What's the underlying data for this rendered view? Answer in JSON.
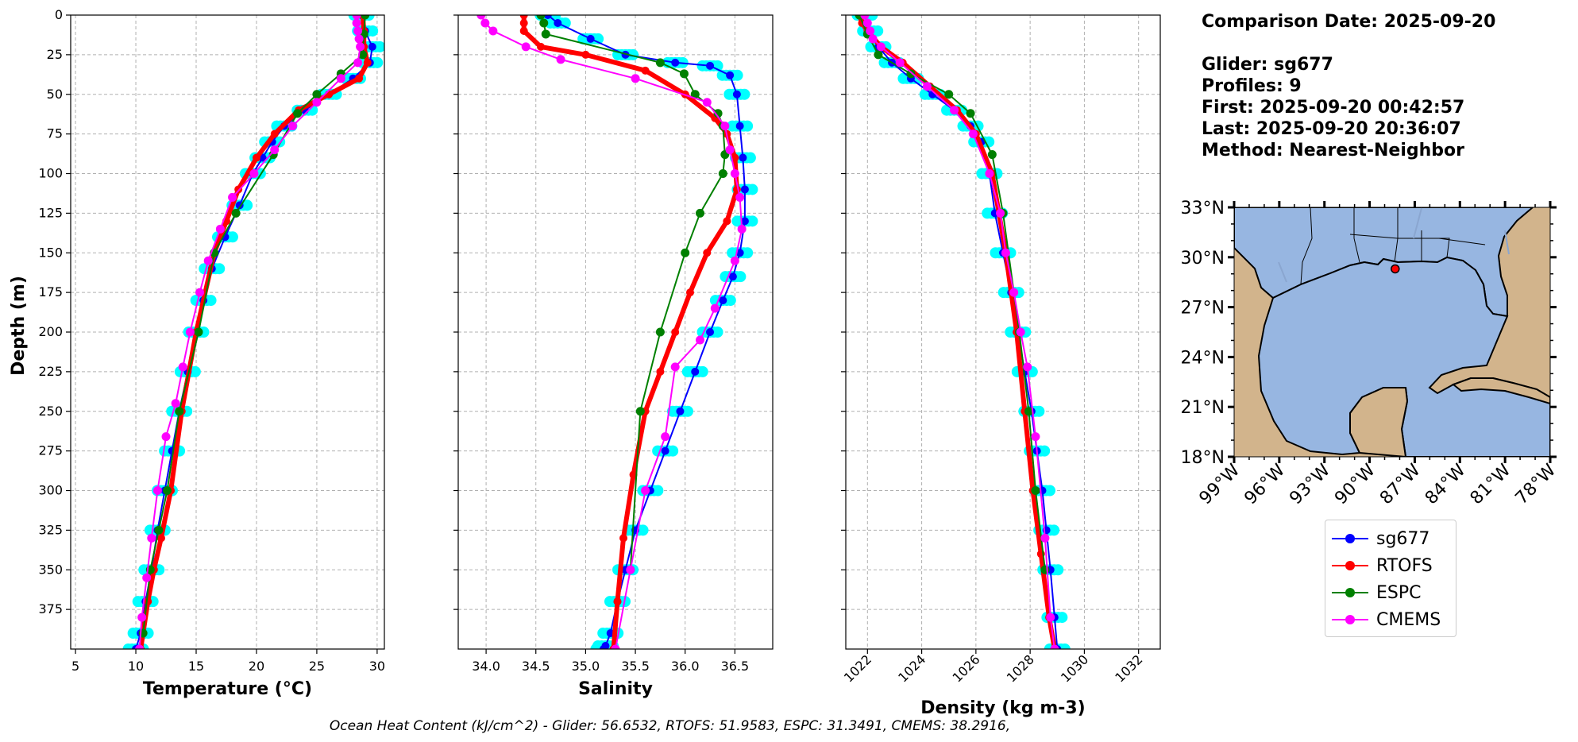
{
  "chart_data": [
    {
      "type": "line",
      "xlabel": "Temperature (°C)",
      "ylabel": "Depth (m)",
      "xlim": [
        4.6,
        30.6
      ],
      "ylim": [
        400,
        0
      ],
      "xticks": [
        "5",
        "10",
        "15",
        "20",
        "25",
        "30"
      ],
      "yticks": [
        "0",
        "25",
        "50",
        "75",
        "100",
        "125",
        "150",
        "175",
        "200",
        "225",
        "250",
        "275",
        "300",
        "325",
        "350",
        "375"
      ],
      "grid": true,
      "series": [
        {
          "name": "sg677",
          "color": "#0000ff",
          "x": [
            28.7,
            29.0,
            29.6,
            29.4,
            28.0,
            26.0,
            24.0,
            22.3,
            21.3,
            20.5,
            19.7,
            18.6,
            17.4,
            16.3,
            15.6,
            15.0,
            14.3,
            13.6,
            13.0,
            12.4,
            11.8,
            11.3,
            10.8,
            10.4,
            10.0
          ],
          "y": [
            0,
            10,
            20,
            30,
            40,
            50,
            60,
            70,
            80,
            90,
            100,
            120,
            140,
            160,
            180,
            200,
            225,
            250,
            275,
            300,
            325,
            350,
            370,
            390,
            400
          ]
        },
        {
          "name": "RTOFS",
          "color": "#ff0000",
          "x": [
            28.8,
            28.9,
            28.9,
            29.2,
            28.5,
            26.0,
            23.5,
            21.5,
            20.0,
            18.5,
            17.5,
            16.5,
            15.0,
            13.8,
            12.9,
            12.1,
            11.5,
            11.0,
            10.6,
            10.4
          ],
          "y": [
            0,
            10,
            20,
            30,
            40,
            50,
            60,
            75,
            90,
            110,
            130,
            150,
            200,
            250,
            300,
            330,
            350,
            370,
            390,
            400
          ]
        },
        {
          "name": "ESPC",
          "color": "#008000",
          "x": [
            29.0,
            28.9,
            28.8,
            27.0,
            25.0,
            23.4,
            21.4,
            18.3,
            16.5,
            15.2,
            13.6,
            12.6,
            11.9,
            11.2,
            10.6
          ],
          "y": [
            0,
            12,
            25,
            37,
            50,
            62,
            88,
            125,
            150,
            200,
            250,
            300,
            325,
            350,
            390
          ]
        },
        {
          "name": "CMEMS",
          "color": "#ff00ff",
          "x": [
            28.3,
            28.3,
            28.4,
            28.5,
            28.6,
            28.4,
            27.0,
            25.0,
            23.0,
            21.5,
            19.8,
            18.0,
            17.0,
            16.0,
            15.3,
            14.5,
            13.9,
            13.3,
            12.5,
            11.8,
            11.3,
            10.9,
            10.5,
            10.3
          ],
          "y": [
            0,
            5,
            10,
            15,
            20,
            30,
            40,
            55,
            70,
            85,
            100,
            115,
            135,
            155,
            175,
            200,
            222,
            245,
            266,
            300,
            330,
            355,
            380,
            400
          ]
        }
      ]
    },
    {
      "type": "line",
      "xlabel": "Salinity",
      "xlim": [
        33.72,
        36.88
      ],
      "ylim": [
        400,
        0
      ],
      "xticks": [
        "34.0",
        "34.5",
        "35.0",
        "35.5",
        "36.0",
        "36.5"
      ],
      "grid": true,
      "series": [
        {
          "name": "sg677",
          "color": "#0000ff",
          "x": [
            34.62,
            34.72,
            35.05,
            35.4,
            35.9,
            36.25,
            36.45,
            36.52,
            36.55,
            36.58,
            36.6,
            36.6,
            36.55,
            36.48,
            36.38,
            36.25,
            36.1,
            35.95,
            35.8,
            35.65,
            35.5,
            35.4,
            35.32,
            35.25,
            35.2,
            35.18
          ],
          "y": [
            0,
            5,
            15,
            25,
            30,
            32,
            38,
            50,
            70,
            90,
            110,
            130,
            150,
            165,
            180,
            200,
            225,
            250,
            275,
            300,
            325,
            350,
            370,
            390,
            398,
            400
          ]
        },
        {
          "name": "RTOFS",
          "color": "#ff0000",
          "x": [
            34.38,
            34.38,
            34.38,
            34.55,
            35.0,
            35.6,
            36.0,
            36.3,
            36.42,
            36.5,
            36.52,
            36.42,
            36.22,
            36.05,
            35.9,
            35.75,
            35.6,
            35.48,
            35.38,
            35.32,
            35.28
          ],
          "y": [
            0,
            5,
            10,
            20,
            25,
            35,
            50,
            65,
            75,
            90,
            110,
            130,
            150,
            175,
            200,
            225,
            250,
            290,
            330,
            370,
            400
          ]
        },
        {
          "name": "ESPC",
          "color": "#008000",
          "x": [
            34.55,
            34.58,
            34.6,
            35.75,
            35.99,
            36.1,
            36.33,
            36.38,
            36.4,
            36.38,
            36.15,
            36.0,
            35.75,
            35.55,
            35.45
          ],
          "y": [
            0,
            5,
            12,
            30,
            37,
            50,
            62,
            70,
            88,
            100,
            125,
            150,
            200,
            250,
            350
          ]
        },
        {
          "name": "CMEMS",
          "color": "#ff00ff",
          "x": [
            33.95,
            33.99,
            34.07,
            34.4,
            34.75,
            35.5,
            36.22,
            36.4,
            36.45,
            36.5,
            36.55,
            36.57,
            36.5,
            36.3,
            36.15,
            35.9,
            35.8,
            35.6,
            35.45,
            35.3
          ],
          "y": [
            0,
            5,
            10,
            20,
            28,
            40,
            55,
            70,
            85,
            100,
            115,
            135,
            155,
            185,
            205,
            222,
            266,
            300,
            350,
            400
          ]
        }
      ]
    },
    {
      "type": "line",
      "xlabel": "Density (kg m-3)",
      "xlim": [
        1021.2,
        1032.8
      ],
      "ylim": [
        400,
        0
      ],
      "xticks": [
        "1022",
        "1024",
        "1026",
        "1028",
        "1030",
        "1032"
      ],
      "grid": true,
      "series": [
        {
          "name": "sg677",
          "color": "#0000ff",
          "x": [
            1021.9,
            1022.1,
            1022.4,
            1022.9,
            1023.6,
            1024.4,
            1025.2,
            1025.8,
            1026.2,
            1026.5,
            1026.7,
            1027.0,
            1027.3,
            1027.55,
            1027.8,
            1028.05,
            1028.25,
            1028.45,
            1028.6,
            1028.75,
            1028.9,
            1029.0
          ],
          "y": [
            0,
            10,
            20,
            30,
            40,
            50,
            60,
            70,
            80,
            100,
            125,
            150,
            175,
            200,
            225,
            250,
            275,
            300,
            325,
            350,
            380,
            400
          ]
        },
        {
          "name": "RTOFS",
          "color": "#ff0000",
          "x": [
            1021.7,
            1021.8,
            1022.0,
            1022.5,
            1023.3,
            1024.3,
            1025.3,
            1026.0,
            1026.6,
            1027.1,
            1027.5,
            1027.8,
            1028.1,
            1028.4,
            1028.7,
            1028.9
          ],
          "y": [
            0,
            5,
            10,
            20,
            30,
            45,
            60,
            75,
            100,
            150,
            200,
            250,
            300,
            340,
            380,
            400
          ]
        },
        {
          "name": "ESPC",
          "color": "#008000",
          "x": [
            1021.7,
            1022.0,
            1022.4,
            1023.6,
            1025.0,
            1025.8,
            1026.6,
            1027.0,
            1027.6,
            1027.95,
            1028.2,
            1028.55
          ],
          "y": [
            0,
            12,
            25,
            37,
            50,
            62,
            88,
            125,
            200,
            250,
            300,
            350
          ]
        },
        {
          "name": "CMEMS",
          "color": "#ff00ff",
          "x": [
            1021.9,
            1022.0,
            1022.1,
            1022.2,
            1022.5,
            1023.2,
            1024.2,
            1025.2,
            1025.9,
            1026.5,
            1026.9,
            1027.1,
            1027.4,
            1027.65,
            1027.9,
            1028.2,
            1028.55,
            1028.75,
            1028.9
          ],
          "y": [
            0,
            5,
            10,
            15,
            20,
            30,
            45,
            60,
            75,
            100,
            125,
            150,
            175,
            200,
            222,
            266,
            330,
            380,
            400
          ]
        }
      ]
    }
  ],
  "map": {
    "lat_labels": [
      "33°N",
      "30°N",
      "27°N",
      "24°N",
      "21°N",
      "18°N"
    ],
    "lon_labels": [
      "99°W",
      "96°W",
      "93°W",
      "90°W",
      "87°W",
      "84°W",
      "81°W",
      "78°W"
    ],
    "glider_position": {
      "lon": -88.3,
      "lat": 29.3
    },
    "land_color": "#d2b48c",
    "ocean_color": "#97b6e1"
  },
  "info": {
    "comparison_date": "Comparison Date: 2025-09-20",
    "glider": "Glider: sg677",
    "profiles": "Profiles: 9",
    "first": "First: 2025-09-20 00:42:57",
    "last": "Last: 2025-09-20 20:36:07",
    "method": "Method: Nearest-Neighbor"
  },
  "legend": {
    "entries": [
      {
        "label": "sg677",
        "color": "#0000ff"
      },
      {
        "label": "RTOFS",
        "color": "#ff0000"
      },
      {
        "label": "ESPC",
        "color": "#008000"
      },
      {
        "label": "CMEMS",
        "color": "#ff00ff"
      }
    ]
  },
  "caption": "Ocean Heat Content (kJ/cm^2) - Glider: 56.6532,  RTOFS: 51.9583,  ESPC: 31.3491,  CMEMS: 38.2916,",
  "cloud_color": "#00ffff"
}
